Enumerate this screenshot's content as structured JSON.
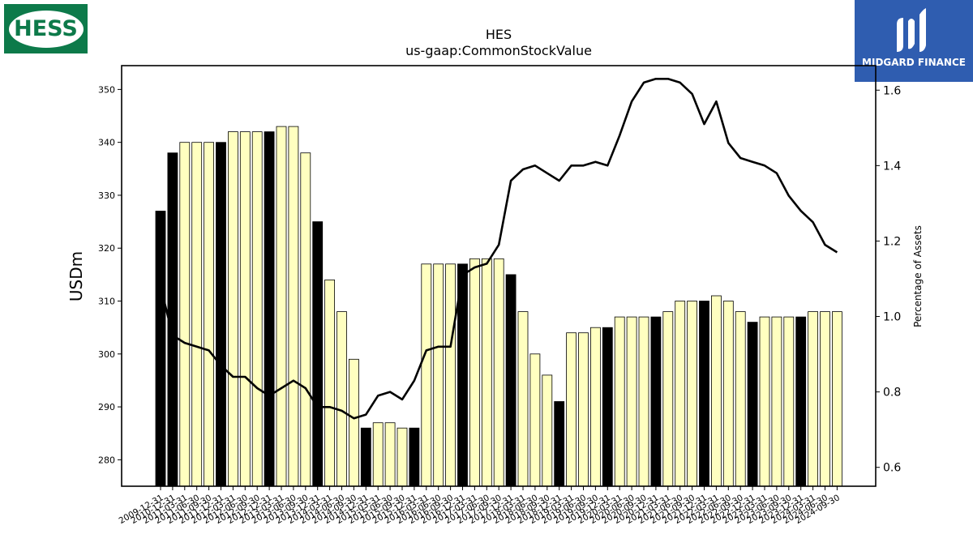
{
  "logos": {
    "left": {
      "text": "HESS",
      "colors": {
        "bg": "#0d7a4a",
        "fg": "#ffffff"
      }
    },
    "right": {
      "text": "MIDGARD FINANCE",
      "colors": {
        "bg": "#2f5db0",
        "fg": "#ffffff"
      }
    }
  },
  "chart_data": {
    "type": "bar",
    "title": "HES",
    "subtitle": "us-gaap:CommonStockValue",
    "ylabel": "USDm",
    "y2label": "Percentage of Assets",
    "ylim": [
      275,
      354.5
    ],
    "y2lim": [
      0.55,
      1.665
    ],
    "yticks": [
      280,
      290,
      300,
      310,
      320,
      330,
      340,
      350
    ],
    "y2ticks": [
      0.6,
      0.8,
      1.0,
      1.2,
      1.4,
      1.6
    ],
    "grid": false,
    "colors": {
      "bar_highlight": "#000000",
      "bar_default": "#ffffc0",
      "line": "#000000"
    },
    "categories": [
      "2009-12-31",
      "2010-12-31",
      "2011-03-31",
      "2011-06-30",
      "2011-09-30",
      "2011-12-31",
      "2012-03-31",
      "2012-06-30",
      "2012-09-30",
      "2012-12-31",
      "2013-03-31",
      "2013-06-30",
      "2013-09-30",
      "2013-12-31",
      "2014-03-31",
      "2014-06-30",
      "2014-09-30",
      "2014-12-31",
      "2015-03-31",
      "2015-06-30",
      "2015-09-30",
      "2015-12-31",
      "2016-03-31",
      "2016-06-30",
      "2016-09-30",
      "2016-12-31",
      "2017-03-31",
      "2017-06-30",
      "2017-09-30",
      "2017-12-31",
      "2018-03-31",
      "2018-06-30",
      "2018-09-30",
      "2018-12-31",
      "2019-03-31",
      "2019-06-30",
      "2019-09-30",
      "2019-12-31",
      "2020-03-31",
      "2020-06-30",
      "2020-09-30",
      "2020-12-31",
      "2021-03-31",
      "2021-06-30",
      "2021-09-30",
      "2021-12-31",
      "2022-03-31",
      "2022-06-30",
      "2022-09-30",
      "2022-12-31",
      "2023-03-31",
      "2023-06-30",
      "2023-09-30",
      "2023-12-31",
      "2024-03-31",
      "2024-06-30",
      "2024-09-30"
    ],
    "series": [
      {
        "type": "bar",
        "values": [
          327,
          338,
          340,
          340,
          340,
          340,
          342,
          342,
          342,
          342,
          343,
          343,
          338,
          325,
          314,
          308,
          299,
          286,
          287,
          287,
          286,
          286,
          317,
          317,
          317,
          317,
          318,
          318,
          318,
          315,
          308,
          300,
          296,
          291,
          304,
          304,
          305,
          305,
          307,
          307,
          307,
          307,
          308,
          310,
          310,
          310,
          311,
          310,
          308,
          306,
          307,
          307,
          307,
          307,
          308,
          308,
          308
        ],
        "highlight": [
          true,
          true,
          false,
          false,
          false,
          true,
          false,
          false,
          false,
          true,
          false,
          false,
          false,
          true,
          false,
          false,
          false,
          true,
          false,
          false,
          false,
          true,
          false,
          false,
          false,
          true,
          false,
          false,
          false,
          true,
          false,
          false,
          false,
          true,
          false,
          false,
          false,
          true,
          false,
          false,
          false,
          true,
          false,
          false,
          false,
          true,
          false,
          false,
          false,
          true,
          false,
          false,
          false,
          true,
          false,
          false,
          false
        ]
      },
      {
        "type": "line",
        "axis": "right",
        "values": [
          1.08,
          0.95,
          0.93,
          0.92,
          0.91,
          0.87,
          0.84,
          0.84,
          0.81,
          0.79,
          0.81,
          0.83,
          0.81,
          0.76,
          0.76,
          0.75,
          0.73,
          0.74,
          0.79,
          0.8,
          0.78,
          0.83,
          0.91,
          0.92,
          0.92,
          1.11,
          1.13,
          1.14,
          1.19,
          1.36,
          1.39,
          1.4,
          1.38,
          1.36,
          1.4,
          1.4,
          1.41,
          1.4,
          1.48,
          1.57,
          1.62,
          1.63,
          1.63,
          1.62,
          1.59,
          1.51,
          1.57,
          1.46,
          1.42,
          1.41,
          1.4,
          1.38,
          1.32,
          1.28,
          1.25,
          1.19,
          1.17
        ]
      }
    ]
  }
}
